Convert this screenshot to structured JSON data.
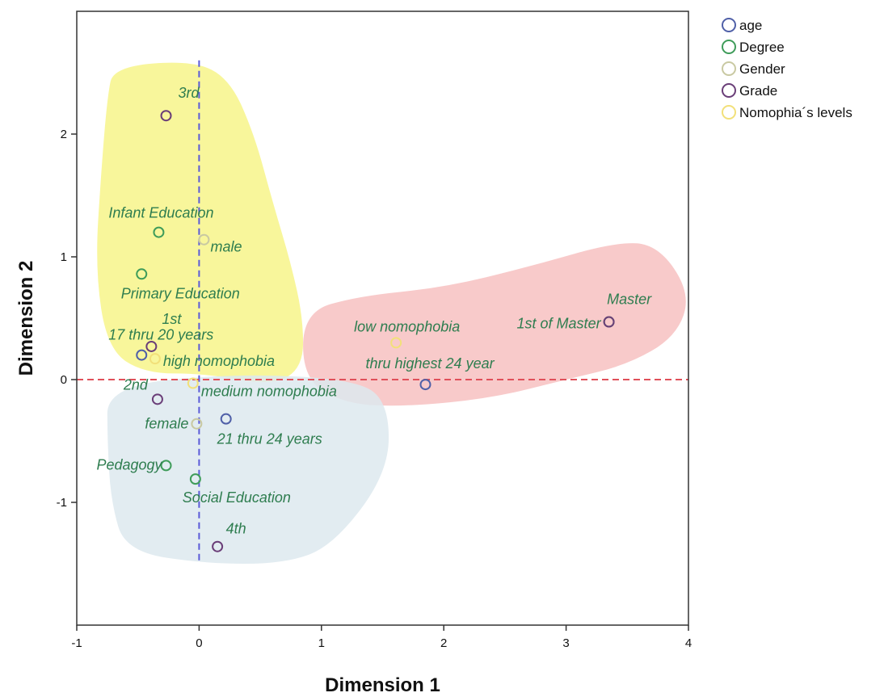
{
  "chart_data": {
    "type": "scatter",
    "xlabel": "Dimension 1",
    "ylabel": "Dimension 2",
    "xlim": [
      -1,
      4
    ],
    "ylim": [
      -2,
      3
    ],
    "xticks": [
      -1,
      0,
      1,
      2,
      3,
      4
    ],
    "yticks": [
      -1,
      0,
      1,
      2
    ],
    "x_tick_labels": [
      "-1",
      "0",
      "1",
      "2",
      "3",
      "4"
    ],
    "y_tick_labels": [
      "-1",
      "0",
      "1",
      "2"
    ],
    "grid": false,
    "legend_position": "top-right, outside plot",
    "reference_lines": [
      {
        "axis": "x",
        "value": 0,
        "color": "#5a5ad8",
        "style": "dashed"
      },
      {
        "axis": "y",
        "value": 0,
        "color": "#e0505a",
        "style": "dashed"
      }
    ],
    "regions": [
      {
        "color": "#f7f48a",
        "outline": [
          [
            -0.7,
            2.55
          ],
          [
            -0.05,
            2.6
          ],
          [
            0.25,
            2.45
          ],
          [
            0.45,
            2.0
          ],
          [
            0.6,
            1.45
          ],
          [
            0.75,
            0.95
          ],
          [
            0.85,
            0.5
          ],
          [
            0.85,
            0.1
          ],
          [
            0.6,
            -0.05
          ],
          [
            0.05,
            0.05
          ],
          [
            -0.45,
            0.05
          ],
          [
            -0.75,
            0.25
          ],
          [
            -0.85,
            0.9
          ],
          [
            -0.8,
            1.7
          ],
          [
            -0.75,
            2.3
          ]
        ]
      },
      {
        "color": "#f7c1c1",
        "outline": [
          [
            0.85,
            0.55
          ],
          [
            1.3,
            0.68
          ],
          [
            2.0,
            0.75
          ],
          [
            2.7,
            0.92
          ],
          [
            3.4,
            1.12
          ],
          [
            3.75,
            1.1
          ],
          [
            4.02,
            0.7
          ],
          [
            3.9,
            0.35
          ],
          [
            3.5,
            0.12
          ],
          [
            3.0,
            0.0
          ],
          [
            2.4,
            -0.15
          ],
          [
            1.7,
            -0.22
          ],
          [
            1.2,
            -0.2
          ],
          [
            0.85,
            0.0
          ]
        ]
      },
      {
        "color": "#dde9ee",
        "outline": [
          [
            -0.75,
            -0.05
          ],
          [
            0.3,
            0.05
          ],
          [
            1.3,
            0.0
          ],
          [
            1.55,
            -0.2
          ],
          [
            1.55,
            -0.75
          ],
          [
            1.1,
            -1.35
          ],
          [
            0.7,
            -1.5
          ],
          [
            0.05,
            -1.5
          ],
          [
            -0.6,
            -1.4
          ],
          [
            -0.72,
            -1.0
          ],
          [
            -0.75,
            -0.5
          ]
        ]
      }
    ],
    "series": [
      {
        "name": "age",
        "color": "#5060a8",
        "points": [
          {
            "x": -0.47,
            "y": 0.2,
            "label": "17 thru 20 years"
          },
          {
            "x": 0.22,
            "y": -0.32,
            "label": "21 thru 24 years"
          },
          {
            "x": 1.85,
            "y": -0.04,
            "label": "thru highest 24 year"
          }
        ]
      },
      {
        "name": "Degree",
        "color": "#3f9c5a",
        "points": [
          {
            "x": -0.33,
            "y": 1.2,
            "label": "Infant Education"
          },
          {
            "x": -0.47,
            "y": 0.86,
            "label": "Primary Education"
          },
          {
            "x": -0.27,
            "y": -0.7,
            "label": "Pedagogy"
          },
          {
            "x": -0.03,
            "y": -0.81,
            "label": "Social Education"
          },
          {
            "x": 3.35,
            "y": 0.47,
            "label": "Master"
          }
        ]
      },
      {
        "name": "Gender",
        "color": "#c9c9a2",
        "points": [
          {
            "x": 0.04,
            "y": 1.14,
            "label": "male"
          },
          {
            "x": -0.02,
            "y": -0.36,
            "label": "female"
          }
        ]
      },
      {
        "name": "Grade",
        "color": "#6a3e78",
        "points": [
          {
            "x": -0.27,
            "y": 2.15,
            "label": "3rd"
          },
          {
            "x": -0.39,
            "y": 0.27,
            "label": "1st"
          },
          {
            "x": -0.34,
            "y": -0.16,
            "label": "2nd"
          },
          {
            "x": 0.15,
            "y": -1.36,
            "label": "4th"
          },
          {
            "x": 3.35,
            "y": 0.47,
            "label": "1st of Master"
          }
        ]
      },
      {
        "name": "Nomophia´s levels",
        "color": "#f2e07a",
        "points": [
          {
            "x": 1.61,
            "y": 0.3,
            "label": "low nomophobia"
          },
          {
            "x": -0.36,
            "y": 0.17,
            "label": "high nomophobia"
          },
          {
            "x": -0.05,
            "y": -0.03,
            "label": "medium nomophobia"
          }
        ]
      }
    ]
  }
}
